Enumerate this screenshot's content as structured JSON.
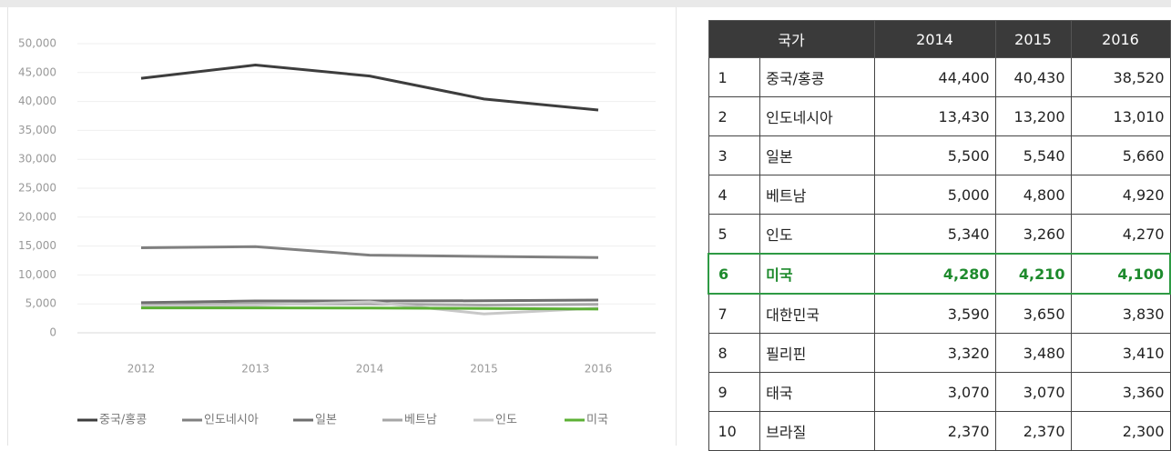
{
  "chart_data": {
    "type": "line",
    "x": [
      "2012",
      "2013",
      "2014",
      "2015",
      "2016"
    ],
    "series": [
      {
        "name": "중국/홍콩",
        "color": "#3d3d3d",
        "values": [
          44000,
          46300,
          44400,
          40430,
          38520
        ]
      },
      {
        "name": "인도네시아",
        "color": "#808080",
        "values": [
          14700,
          14900,
          13430,
          13200,
          13010
        ]
      },
      {
        "name": "일본",
        "color": "#6e6e6e",
        "values": [
          5200,
          5500,
          5500,
          5540,
          5660
        ]
      },
      {
        "name": "베트남",
        "color": "#a6a6a6",
        "values": [
          4800,
          5000,
          5000,
          4800,
          4920
        ]
      },
      {
        "name": "인도",
        "color": "#c8c8c8",
        "values": [
          4600,
          4800,
          5340,
          3260,
          4270
        ]
      },
      {
        "name": "미국",
        "color": "#5cb035",
        "values": [
          4300,
          4300,
          4280,
          4210,
          4100
        ]
      }
    ],
    "ylim": [
      0,
      50000
    ],
    "yticks": [
      0,
      {
        "value": 5000,
        "label": "5,000"
      },
      {
        "value": 10000,
        "label": "10,000"
      },
      {
        "value": 15000,
        "label": "15,000"
      },
      {
        "value": 20000,
        "label": "20,000"
      },
      {
        "value": 25000,
        "label": "25,000"
      },
      {
        "value": 30000,
        "label": "30,000"
      },
      {
        "value": 35000,
        "label": "35,000"
      },
      {
        "value": 40000,
        "label": "40,000"
      },
      {
        "value": 45000,
        "label": "45,000"
      },
      {
        "value": 50000,
        "label": "50,000"
      }
    ],
    "grid": true,
    "legend": "bottom"
  },
  "table": {
    "header": [
      "국가",
      "2014",
      "2015",
      "2016"
    ],
    "rows": [
      [
        "1",
        "중국/홍콩",
        "44,400",
        "40,430",
        "38,520"
      ],
      [
        "2",
        "인도네시아",
        "13,430",
        "13,200",
        "13,010"
      ],
      [
        "3",
        "일본",
        "5,500",
        "5,540",
        "5,660"
      ],
      [
        "4",
        "베트남",
        "5,000",
        "4,800",
        "4,920"
      ],
      [
        "5",
        "인도",
        "5,340",
        "3,260",
        "4,270"
      ],
      [
        "6",
        "미국",
        "4,280",
        "4,210",
        "4,100"
      ],
      [
        "7",
        "대한민국",
        "3,590",
        "3,650",
        "3,830"
      ],
      [
        "8",
        "필리핀",
        "3,320",
        "3,480",
        "3,410"
      ],
      [
        "9",
        "태국",
        "3,070",
        "3,070",
        "3,360"
      ],
      [
        "10",
        "브라질",
        "2,370",
        "2,370",
        "2,300"
      ]
    ]
  }
}
